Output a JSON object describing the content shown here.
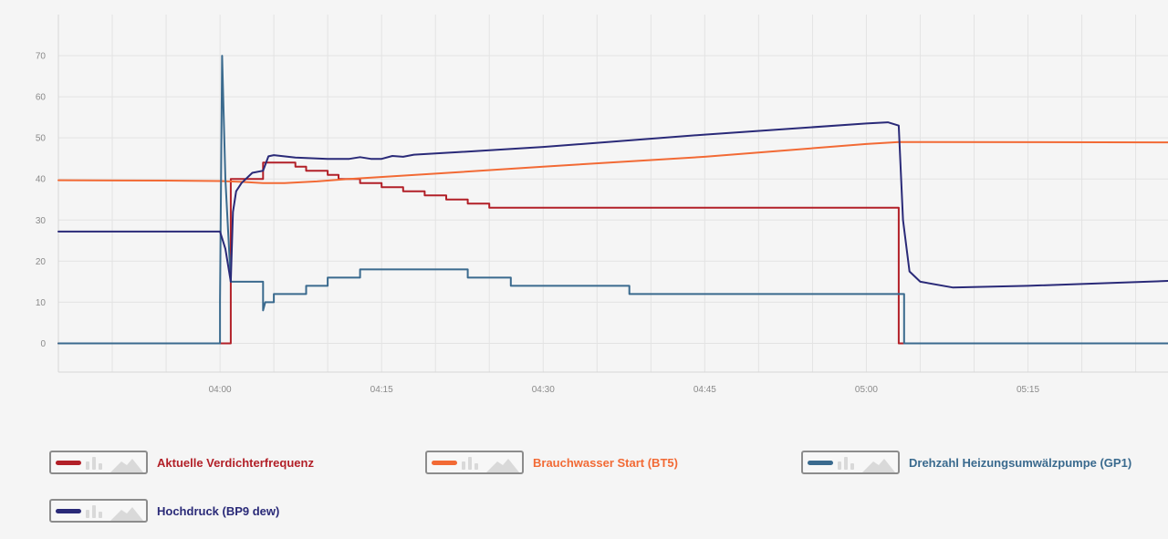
{
  "chart_data": {
    "type": "line",
    "title": "",
    "xlabel": "",
    "ylabel": "",
    "x_ticks": [
      "04:00",
      "04:15",
      "04:30",
      "04:45",
      "05:00",
      "05:15"
    ],
    "y_ticks": [
      0,
      10,
      20,
      30,
      40,
      50,
      60,
      70
    ],
    "xlim": [
      "03:45",
      "05:28"
    ],
    "ylim": [
      -7,
      80
    ],
    "grid": true,
    "legend_position": "bottom",
    "series": [
      {
        "name": "Aktuelle Verdichterfrequenz",
        "color": "#b22028",
        "step": true,
        "points": [
          [
            "03:45",
            0
          ],
          [
            "04:01",
            0
          ],
          [
            "04:01",
            40
          ],
          [
            "04:04",
            40
          ],
          [
            "04:04",
            44
          ],
          [
            "04:07",
            44
          ],
          [
            "04:07",
            43
          ],
          [
            "04:08",
            43
          ],
          [
            "04:08",
            42
          ],
          [
            "04:10",
            42
          ],
          [
            "04:10",
            41
          ],
          [
            "04:11",
            41
          ],
          [
            "04:11",
            40
          ],
          [
            "04:13",
            40
          ],
          [
            "04:13",
            39
          ],
          [
            "04:15",
            39
          ],
          [
            "04:15",
            38
          ],
          [
            "04:17",
            38
          ],
          [
            "04:17",
            37
          ],
          [
            "04:19",
            37
          ],
          [
            "04:19",
            36
          ],
          [
            "04:21",
            36
          ],
          [
            "04:21",
            35
          ],
          [
            "04:23",
            35
          ],
          [
            "04:23",
            34
          ],
          [
            "04:25",
            34
          ],
          [
            "04:25",
            33
          ],
          [
            "05:03",
            33
          ],
          [
            "05:03",
            0
          ],
          [
            "05:28",
            0
          ]
        ]
      },
      {
        "name": "Brauchwasser Start (BT5)",
        "color": "#f26a35",
        "step": false,
        "points": [
          [
            "03:45",
            39.7
          ],
          [
            "03:55",
            39.6
          ],
          [
            "04:00",
            39.5
          ],
          [
            "04:02",
            39.3
          ],
          [
            "04:04",
            39.0
          ],
          [
            "04:06",
            39.0
          ],
          [
            "04:09",
            39.4
          ],
          [
            "04:12",
            40.0
          ],
          [
            "04:20",
            41.3
          ],
          [
            "04:30",
            43.0
          ],
          [
            "04:45",
            45.4
          ],
          [
            "05:00",
            48.5
          ],
          [
            "05:03",
            49.0
          ],
          [
            "05:28",
            48.9
          ]
        ]
      },
      {
        "name": "Drehzahl Heizungsumwälzpumpe (GP1)",
        "color": "#3a6a8e",
        "step": true,
        "points": [
          [
            "03:45",
            0
          ],
          [
            "04:00",
            0
          ],
          [
            "04:00",
            10
          ],
          [
            "04:00.2",
            70
          ],
          [
            "04:00.5",
            40
          ],
          [
            "04:01",
            15
          ],
          [
            "04:04",
            15
          ],
          [
            "04:04",
            8
          ],
          [
            "04:04.2",
            10
          ],
          [
            "04:05",
            10
          ],
          [
            "04:05",
            12
          ],
          [
            "04:08",
            12
          ],
          [
            "04:08",
            14
          ],
          [
            "04:10",
            14
          ],
          [
            "04:10",
            16
          ],
          [
            "04:13",
            16
          ],
          [
            "04:13",
            18
          ],
          [
            "04:23",
            18
          ],
          [
            "04:23",
            16
          ],
          [
            "04:27",
            16
          ],
          [
            "04:27",
            14
          ],
          [
            "04:38",
            14
          ],
          [
            "04:38",
            12
          ],
          [
            "05:03.5",
            12
          ],
          [
            "05:03.5",
            0
          ],
          [
            "05:28",
            0
          ]
        ]
      },
      {
        "name": "Hochdruck (BP9 dew)",
        "color": "#2a2a78",
        "step": false,
        "points": [
          [
            "03:45",
            27.2
          ],
          [
            "04:00",
            27.2
          ],
          [
            "04:00.5",
            23
          ],
          [
            "04:01",
            15
          ],
          [
            "04:01.2",
            32
          ],
          [
            "04:01.5",
            37
          ],
          [
            "04:02",
            39
          ],
          [
            "04:03",
            41.5
          ],
          [
            "04:04",
            42
          ],
          [
            "04:04.5",
            45.5
          ],
          [
            "04:05",
            45.8
          ],
          [
            "04:07",
            45.2
          ],
          [
            "04:10",
            44.9
          ],
          [
            "04:12",
            44.9
          ],
          [
            "04:13",
            45.3
          ],
          [
            "04:14",
            44.9
          ],
          [
            "04:15",
            44.9
          ],
          [
            "04:16",
            45.6
          ],
          [
            "04:17",
            45.4
          ],
          [
            "04:18",
            45.9
          ],
          [
            "04:22",
            46.5
          ],
          [
            "04:30",
            47.8
          ],
          [
            "04:45",
            50.8
          ],
          [
            "05:00",
            53.5
          ],
          [
            "05:02",
            53.8
          ],
          [
            "05:03",
            53
          ],
          [
            "05:03.4",
            30
          ],
          [
            "05:04",
            17.5
          ],
          [
            "05:05",
            15
          ],
          [
            "05:08",
            13.6
          ],
          [
            "05:15",
            14
          ],
          [
            "05:28",
            15.2
          ]
        ]
      }
    ]
  },
  "legend": [
    {
      "label": "Aktuelle Verdichterfrequenz",
      "color": "#b22028"
    },
    {
      "label": "Brauchwasser Start (BT5)",
      "color": "#f26a35"
    },
    {
      "label": "Drehzahl Heizungsumwälzpumpe (GP1)",
      "color": "#3a6a8e"
    },
    {
      "label": "Hochdruck (BP9 dew)",
      "color": "#2a2a78"
    }
  ]
}
